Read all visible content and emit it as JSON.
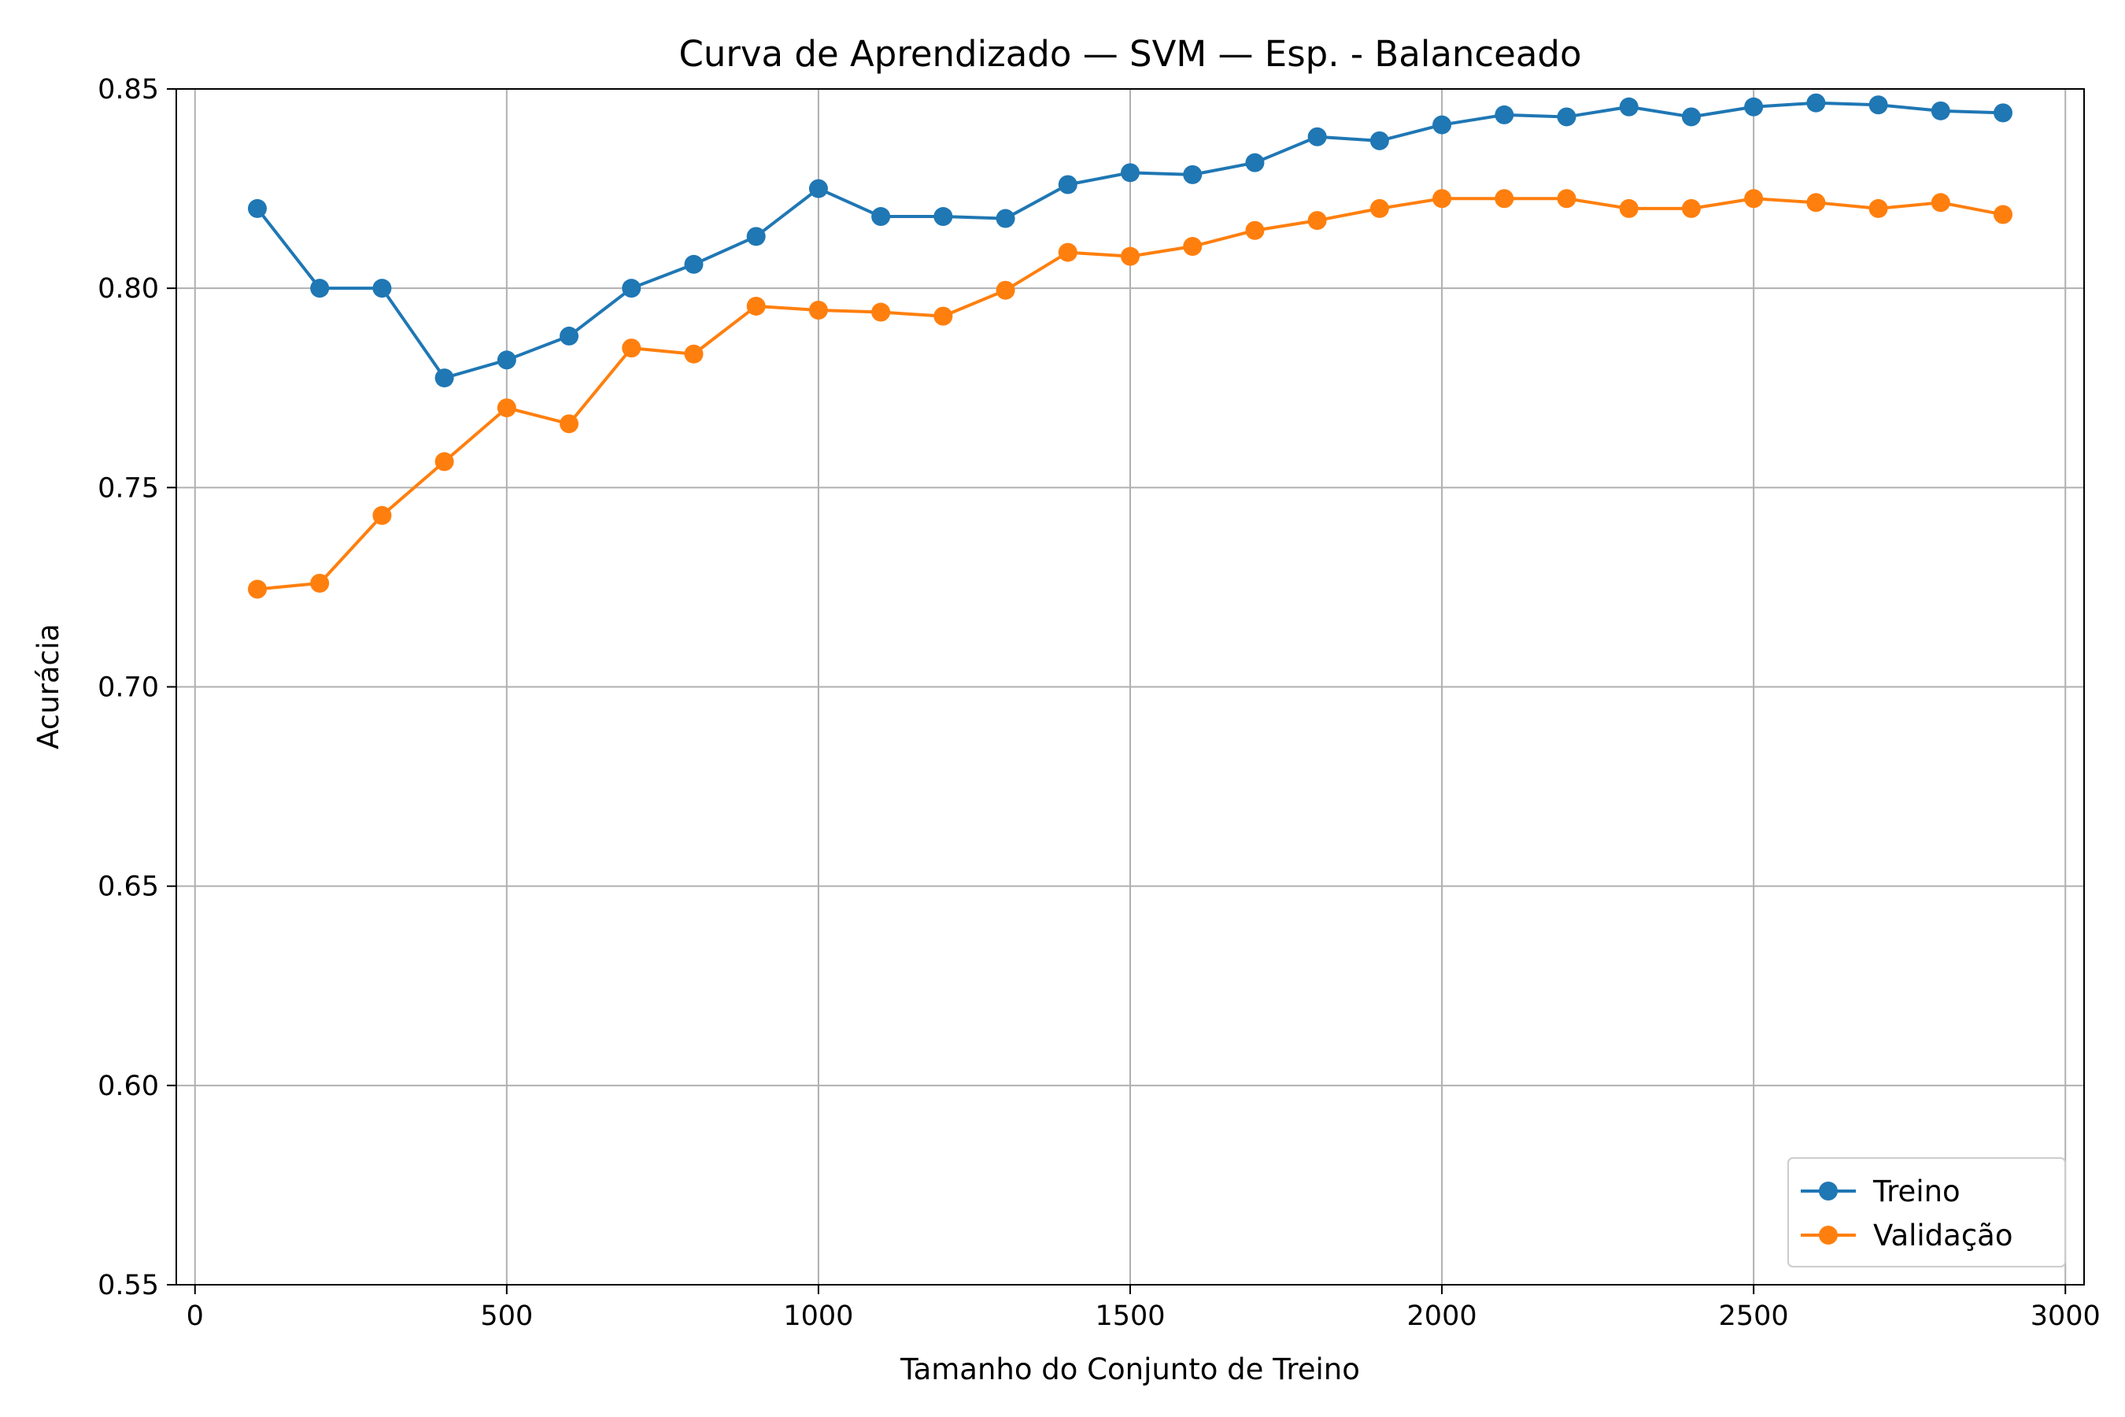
{
  "chart_data": {
    "type": "line",
    "title": "Curva de Aprendizado — SVM — Esp. - Balanceado",
    "xlabel": "Tamanho do Conjunto de Treino",
    "ylabel": "Acurácia",
    "xlim": [
      -30,
      3030
    ],
    "ylim": [
      0.55,
      0.85
    ],
    "xticks": [
      0,
      500,
      1000,
      1500,
      2000,
      2500,
      3000
    ],
    "xtick_labels": [
      "0",
      "500",
      "1000",
      "1500",
      "2000",
      "2500",
      "3000"
    ],
    "yticks": [
      0.55,
      0.6,
      0.65,
      0.7,
      0.75,
      0.8,
      0.85
    ],
    "ytick_labels": [
      "0.55",
      "0.60",
      "0.65",
      "0.70",
      "0.75",
      "0.80",
      "0.85"
    ],
    "grid": true,
    "legend_position": "lower-right",
    "x": [
      100,
      200,
      300,
      400,
      500,
      600,
      700,
      800,
      900,
      1000,
      1100,
      1200,
      1300,
      1400,
      1500,
      1600,
      1700,
      1800,
      1900,
      2000,
      2100,
      2200,
      2300,
      2400,
      2500,
      2600,
      2700,
      2800,
      2900
    ],
    "series": [
      {
        "name": "Treino",
        "color": "#1f77b4",
        "values": [
          0.82,
          0.8,
          0.8,
          0.7775,
          0.782,
          0.788,
          0.8,
          0.806,
          0.813,
          0.825,
          0.818,
          0.818,
          0.8175,
          0.826,
          0.829,
          0.8285,
          0.8315,
          0.838,
          0.837,
          0.841,
          0.8435,
          0.843,
          0.8455,
          0.843,
          0.8455,
          0.8465,
          0.846,
          0.8445,
          0.844
        ]
      },
      {
        "name": "Validação",
        "color": "#ff7f0e",
        "values": [
          0.7245,
          0.726,
          0.743,
          0.7565,
          0.77,
          0.766,
          0.785,
          0.7835,
          0.7955,
          0.7945,
          0.794,
          0.793,
          0.7995,
          0.809,
          0.808,
          0.8105,
          0.8145,
          0.817,
          0.82,
          0.8225,
          0.8225,
          0.8225,
          0.82,
          0.82,
          0.8225,
          0.8215,
          0.82,
          0.8215,
          0.8185
        ]
      }
    ]
  }
}
